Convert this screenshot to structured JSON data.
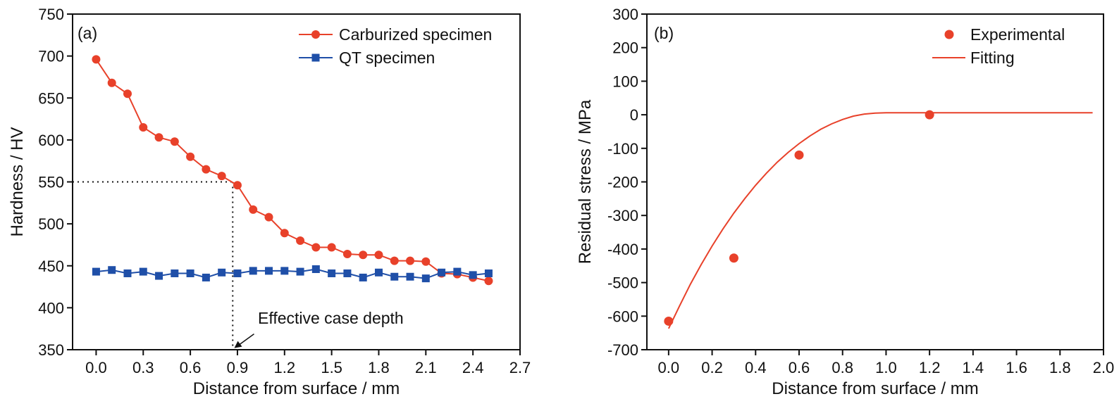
{
  "colors": {
    "red": "#e8412a",
    "blue": "#1f4fa8",
    "axis": "#111111",
    "guide": "#111111"
  },
  "chart_data": [
    {
      "type": "line",
      "panel_label": "(a)",
      "xlabel": "Distance from surface / mm",
      "ylabel": "Hardness / HV",
      "xlim": [
        -0.15,
        2.7
      ],
      "ylim": [
        350,
        750
      ],
      "xticks": [
        0.0,
        0.3,
        0.6,
        0.9,
        1.2,
        1.5,
        1.8,
        2.1,
        2.4,
        2.7
      ],
      "xtick_labels": [
        "0.0",
        "0.3",
        "0.6",
        "0.9",
        "1.2",
        "1.5",
        "1.8",
        "2.1",
        "2.4",
        "2.7"
      ],
      "yticks": [
        350,
        400,
        450,
        500,
        550,
        600,
        650,
        700,
        750
      ],
      "ytick_labels": [
        "350",
        "400",
        "450",
        "500",
        "550",
        "600",
        "650",
        "700",
        "750"
      ],
      "legend_position": "top-right",
      "series": [
        {
          "name": "Carburized specimen",
          "color": "#e8412a",
          "marker": "circle",
          "x": [
            0.0,
            0.1,
            0.2,
            0.3,
            0.4,
            0.5,
            0.6,
            0.7,
            0.8,
            0.9,
            1.0,
            1.1,
            1.2,
            1.3,
            1.4,
            1.5,
            1.6,
            1.7,
            1.8,
            1.9,
            2.0,
            2.1,
            2.2,
            2.3,
            2.4,
            2.5
          ],
          "y": [
            696,
            668,
            655,
            615,
            603,
            598,
            580,
            565,
            557,
            546,
            517,
            508,
            489,
            480,
            472,
            472,
            464,
            463,
            463,
            456,
            456,
            455,
            441,
            440,
            436,
            432
          ]
        },
        {
          "name": "QT specimen",
          "color": "#1f4fa8",
          "marker": "square",
          "x": [
            0.0,
            0.1,
            0.2,
            0.3,
            0.4,
            0.5,
            0.6,
            0.7,
            0.8,
            0.9,
            1.0,
            1.1,
            1.2,
            1.3,
            1.4,
            1.5,
            1.6,
            1.7,
            1.8,
            1.9,
            2.0,
            2.1,
            2.2,
            2.3,
            2.4,
            2.5
          ],
          "y": [
            443,
            445,
            441,
            443,
            438,
            441,
            441,
            436,
            442,
            441,
            444,
            444,
            444,
            443,
            446,
            441,
            441,
            436,
            442,
            437,
            437,
            435,
            442,
            443,
            439,
            441
          ]
        }
      ],
      "guide": {
        "x": 0.87,
        "y": 550
      },
      "annotation": {
        "text": "Effective case depth",
        "x": 1.15,
        "y": 372,
        "arrow_to": [
          0.88,
          352
        ]
      }
    },
    {
      "type": "scatter",
      "panel_label": "(b)",
      "xlabel": "Distance from surface / mm",
      "ylabel": "Residual stress / MPa",
      "xlim": [
        -0.1,
        2.0
      ],
      "ylim": [
        -700,
        300
      ],
      "xticks": [
        0.0,
        0.2,
        0.4,
        0.6,
        0.8,
        1.0,
        1.2,
        1.4,
        1.6,
        1.8,
        2.0
      ],
      "xtick_labels": [
        "0.0",
        "0.2",
        "0.4",
        "0.6",
        "0.8",
        "1.0",
        "1.2",
        "1.4",
        "1.6",
        "1.8",
        "2.0"
      ],
      "yticks": [
        -700,
        -600,
        -500,
        -400,
        -300,
        -200,
        -100,
        0,
        100,
        200,
        300
      ],
      "ytick_labels": [
        "-700",
        "-600",
        "-500",
        "-400",
        "-300",
        "-200",
        "-100",
        "0",
        "100",
        "200",
        "300"
      ],
      "legend_position": "top-right",
      "series": [
        {
          "name": "Experimental",
          "color": "#e8412a",
          "marker": "circle",
          "x": [
            0.0,
            0.3,
            0.6,
            1.2
          ],
          "y": [
            -615,
            -427,
            -120,
            0
          ]
        },
        {
          "name": "Fitting",
          "color": "#e8412a",
          "marker": "none",
          "x": [
            0.0,
            0.05,
            0.1,
            0.15,
            0.2,
            0.25,
            0.3,
            0.35,
            0.4,
            0.45,
            0.5,
            0.55,
            0.6,
            0.65,
            0.7,
            0.75,
            0.8,
            0.85,
            0.9,
            0.95,
            1.0,
            1.05,
            1.1,
            1.15,
            1.2,
            1.95
          ],
          "y": [
            -637,
            -570,
            -505,
            -446,
            -391,
            -340,
            -293,
            -250,
            -210,
            -174,
            -141,
            -112,
            -86,
            -63,
            -43,
            -27,
            -14,
            -4,
            2,
            5,
            6,
            6,
            6,
            6,
            6,
            6
          ]
        }
      ]
    }
  ]
}
